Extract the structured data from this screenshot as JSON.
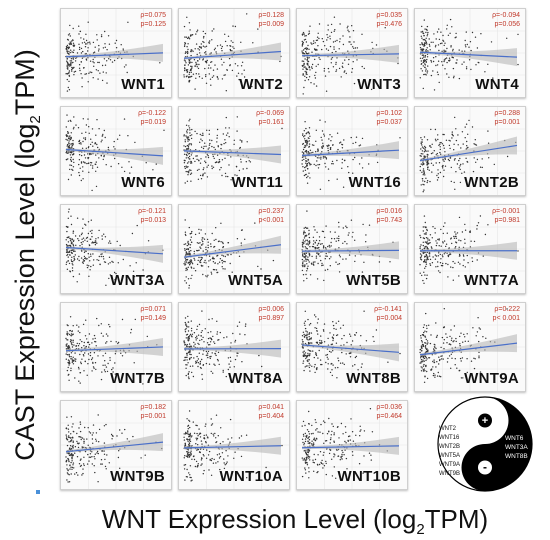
{
  "figure": {
    "y_axis_label": "CAST  Expression Level (log",
    "y_axis_sub": "2",
    "y_axis_suffix": "TPM)",
    "x_axis_label": "WNT Expression Level (log",
    "x_axis_sub": "2",
    "x_axis_suffix": "TPM)"
  },
  "chart_data": [
    {
      "type": "scatter",
      "gene": "WNT1",
      "rho": "ρ=0.075",
      "p": "p=0.125",
      "rho_value": 0.075,
      "p_value": 0.125,
      "point_color": "#333333",
      "fit_color": "#4a6fc9"
    },
    {
      "type": "scatter",
      "gene": "WNT2",
      "rho": "ρ=0.128",
      "p": "p=0.009",
      "rho_value": 0.128,
      "p_value": 0.009,
      "point_color": "#333333",
      "fit_color": "#4a6fc9"
    },
    {
      "type": "scatter",
      "gene": "WNT3",
      "rho": "ρ=0.035",
      "p": "p=0.476",
      "rho_value": 0.035,
      "p_value": 0.476,
      "point_color": "#333333",
      "fit_color": "#4a6fc9"
    },
    {
      "type": "scatter",
      "gene": "WNT4",
      "rho": "ρ=-0.094",
      "p": "p=0.056",
      "rho_value": -0.094,
      "p_value": 0.056,
      "point_color": "#333333",
      "fit_color": "#4a6fc9"
    },
    {
      "type": "scatter",
      "gene": "WNT6",
      "rho": "ρ=-0.122",
      "p": "p=0.019",
      "rho_value": -0.122,
      "p_value": 0.019,
      "point_color": "#333333",
      "fit_color": "#4a6fc9"
    },
    {
      "type": "scatter",
      "gene": "WNT11",
      "rho": "ρ=-0.069",
      "p": "p=0.161",
      "rho_value": -0.069,
      "p_value": 0.161,
      "point_color": "#333333",
      "fit_color": "#4a6fc9"
    },
    {
      "type": "scatter",
      "gene": "WNT16",
      "rho": "ρ=0.102",
      "p": "p=0.037",
      "rho_value": 0.102,
      "p_value": 0.037,
      "point_color": "#333333",
      "fit_color": "#4a6fc9"
    },
    {
      "type": "scatter",
      "gene": "WNT2B",
      "rho": "ρ=0.288",
      "p": "p=0.001",
      "rho_value": 0.288,
      "p_value": 0.001,
      "point_color": "#333333",
      "fit_color": "#4a6fc9"
    },
    {
      "type": "scatter",
      "gene": "WNT3A",
      "rho": "ρ=-0.121",
      "p": "p=0.013",
      "rho_value": -0.121,
      "p_value": 0.013,
      "point_color": "#333333",
      "fit_color": "#4a6fc9"
    },
    {
      "type": "scatter",
      "gene": "WNT5A",
      "rho": "ρ=0.237",
      "p": "p<0.001",
      "rho_value": 0.237,
      "p_value": 0.001,
      "point_color": "#333333",
      "fit_color": "#4a6fc9"
    },
    {
      "type": "scatter",
      "gene": "WNT5B",
      "rho": "ρ=0.016",
      "p": "p=0.743",
      "rho_value": 0.016,
      "p_value": 0.743,
      "point_color": "#333333",
      "fit_color": "#4a6fc9"
    },
    {
      "type": "scatter",
      "gene": "WNT7A",
      "rho": "ρ=-0.001",
      "p": "p=0.981",
      "rho_value": -0.001,
      "p_value": 0.981,
      "point_color": "#333333",
      "fit_color": "#4a6fc9"
    },
    {
      "type": "scatter",
      "gene": "WNT7B",
      "rho": "ρ=0.071",
      "p": "p=0.149",
      "rho_value": 0.071,
      "p_value": 0.149,
      "point_color": "#333333",
      "fit_color": "#4a6fc9"
    },
    {
      "type": "scatter",
      "gene": "WNT8A",
      "rho": "ρ=0.006",
      "p": "p=0.897",
      "rho_value": 0.006,
      "p_value": 0.897,
      "point_color": "#333333",
      "fit_color": "#4a6fc9"
    },
    {
      "type": "scatter",
      "gene": "WNT8B",
      "rho": "ρ=-0.141",
      "p": "p=0.004",
      "rho_value": -0.141,
      "p_value": 0.004,
      "point_color": "#333333",
      "fit_color": "#4a6fc9"
    },
    {
      "type": "scatter",
      "gene": "WNT9A",
      "rho": "ρ=0.222",
      "p": "p< 0.001",
      "rho_value": 0.222,
      "p_value": 0.001,
      "point_color": "#333333",
      "fit_color": "#4a6fc9"
    },
    {
      "type": "scatter",
      "gene": "WNT9B",
      "rho": "ρ=0.182",
      "p": "p=0.001",
      "rho_value": 0.182,
      "p_value": 0.001,
      "point_color": "#333333",
      "fit_color": "#4a6fc9"
    },
    {
      "type": "scatter",
      "gene": "WNT10A",
      "rho": "ρ=0.041",
      "p": "p=0.404",
      "rho_value": 0.041,
      "p_value": 0.404,
      "point_color": "#333333",
      "fit_color": "#4a6fc9"
    },
    {
      "type": "scatter",
      "gene": "WNT10B",
      "rho": "ρ=0.036",
      "p": "p=0.464",
      "rho_value": 0.036,
      "p_value": 0.464,
      "point_color": "#333333",
      "fit_color": "#4a6fc9"
    }
  ],
  "yin_yang": {
    "plus_symbol": "+",
    "minus_symbol": "-",
    "positive_genes": [
      "WNT2",
      "WNT16",
      "WNT2B",
      "WNT5A",
      "WNT9A",
      "WNT9B"
    ],
    "negative_genes": [
      "WNT6",
      "WNT3A",
      "WNT8B"
    ],
    "colors": {
      "dark": "#000000",
      "light": "#ffffff"
    }
  }
}
